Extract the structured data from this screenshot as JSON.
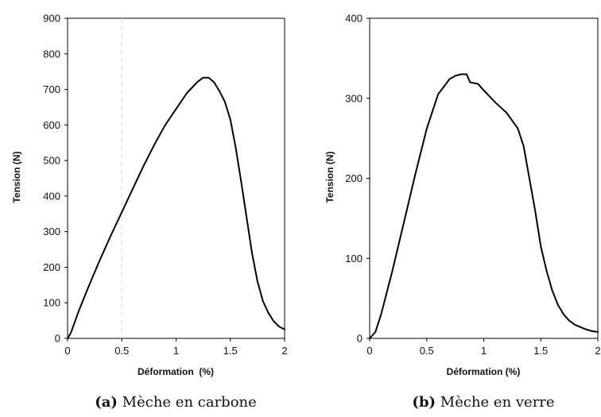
{
  "chart_data": [
    {
      "type": "line",
      "title": "",
      "xlabel": "Déformation  (%)",
      "ylabel": "Tension (N)",
      "xlim": [
        0,
        2
      ],
      "ylim": [
        0,
        900
      ],
      "x_ticks": [
        0,
        0.5,
        1,
        1.5,
        2
      ],
      "x_tick_labels": [
        "0",
        "0.5",
        "1",
        "1.5",
        "2"
      ],
      "y_ticks": [
        0,
        100,
        200,
        300,
        400,
        500,
        600,
        700,
        800,
        900
      ],
      "y_tick_labels": [
        "0",
        "100",
        "200",
        "300",
        "400",
        "500",
        "600",
        "700",
        "800",
        "900"
      ],
      "grid": false,
      "legend": "none",
      "series": [
        {
          "color": "#000000",
          "x": [
            0,
            0.03,
            0.1,
            0.2,
            0.3,
            0.4,
            0.5,
            0.6,
            0.7,
            0.8,
            0.9,
            1.0,
            1.1,
            1.2,
            1.25,
            1.3,
            1.35,
            1.4,
            1.45,
            1.5,
            1.55,
            1.6,
            1.65,
            1.7,
            1.75,
            1.8,
            1.85,
            1.9,
            1.95,
            2.0
          ],
          "y": [
            0,
            15,
            75,
            150,
            222,
            290,
            355,
            420,
            485,
            545,
            600,
            645,
            690,
            722,
            733,
            733,
            720,
            695,
            665,
            615,
            535,
            440,
            340,
            240,
            160,
            105,
            72,
            48,
            33,
            25
          ]
        }
      ],
      "caption_tag": "(a)",
      "caption_text": "Mèche en carbone"
    },
    {
      "type": "line",
      "title": "",
      "xlabel": "Déformation (%)",
      "ylabel": "Tension (N)",
      "xlim": [
        0,
        2
      ],
      "ylim": [
        0,
        400
      ],
      "x_ticks": [
        0,
        0.5,
        1,
        1.5,
        2
      ],
      "x_tick_labels": [
        "0",
        "0.5",
        "1",
        "1.5",
        "2"
      ],
      "y_ticks": [
        0,
        100,
        200,
        300,
        400
      ],
      "y_tick_labels": [
        "0",
        "100",
        "200",
        "300",
        "400"
      ],
      "grid": false,
      "legend": "none",
      "series": [
        {
          "color": "#000000",
          "x": [
            0,
            0.05,
            0.1,
            0.2,
            0.3,
            0.4,
            0.5,
            0.6,
            0.7,
            0.75,
            0.8,
            0.85,
            0.88,
            0.95,
            1.0,
            1.1,
            1.2,
            1.3,
            1.35,
            1.4,
            1.45,
            1.5,
            1.55,
            1.6,
            1.65,
            1.7,
            1.75,
            1.8,
            1.85,
            1.9,
            1.95,
            2.0
          ],
          "y": [
            0,
            8,
            30,
            85,
            145,
            205,
            262,
            305,
            324,
            328,
            330,
            330,
            320,
            318,
            310,
            295,
            282,
            262,
            240,
            200,
            160,
            115,
            85,
            60,
            42,
            30,
            22,
            17,
            14,
            11,
            9,
            8
          ]
        }
      ],
      "caption_tag": "(b)",
      "caption_text": "Mèche en verre"
    }
  ]
}
